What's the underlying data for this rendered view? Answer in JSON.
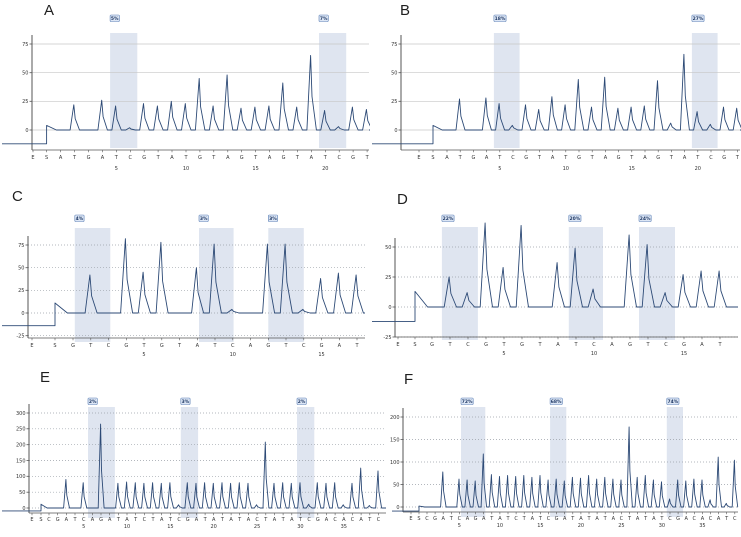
{
  "figure": {
    "background": "#ffffff"
  },
  "colors": {
    "trace": "#2d4a76",
    "band": "#dfe5f0",
    "label_box_bg": "#dce6f5",
    "label_box_border": "#5b7fb5",
    "label_text": "#1f3864",
    "grid_solid": "#c6c6c6",
    "grid_dotted": "#9aa0a8",
    "axis": "#555555",
    "text": "#333333"
  },
  "chart_data": [
    {
      "id": "A",
      "title": "A",
      "type": "line",
      "y_axis": {
        "ticks": [
          75,
          50,
          25,
          0
        ]
      },
      "x_axis": {
        "letters": [
          "E",
          "S",
          "A",
          "T",
          "G",
          "A",
          "T",
          "C",
          "G",
          "T",
          "A",
          "T",
          "G",
          "T",
          "A",
          "G",
          "T",
          "A",
          "G",
          "T",
          "A",
          "T",
          "C",
          "G",
          "T"
        ],
        "numbers": [
          5,
          10,
          15,
          20
        ]
      },
      "peak_heights": [
        0,
        22,
        0,
        26,
        21,
        2,
        23,
        21,
        25,
        23,
        45,
        21,
        48,
        19,
        20,
        21,
        41,
        20,
        65,
        17,
        3,
        20,
        18
      ],
      "pre_level": -12,
      "s_bump": 4,
      "grid": "solid",
      "regions": [
        {
          "from": 4.55,
          "to": 6.5,
          "label": "5%"
        },
        {
          "from": 19.55,
          "to": 21.5,
          "label": "7%"
        }
      ]
    },
    {
      "id": "B",
      "title": "B",
      "type": "line",
      "y_axis": {
        "ticks": [
          75,
          50,
          25,
          0
        ]
      },
      "x_axis": {
        "letters": [
          "E",
          "S",
          "A",
          "T",
          "G",
          "A",
          "T",
          "C",
          "G",
          "T",
          "A",
          "T",
          "G",
          "T",
          "A",
          "G",
          "T",
          "A",
          "G",
          "T",
          "A",
          "T",
          "C",
          "G",
          "T"
        ],
        "numbers": [
          5,
          10,
          15,
          20
        ]
      },
      "peak_heights": [
        0,
        27,
        0,
        28,
        23,
        4,
        22,
        18,
        29,
        22,
        44,
        20,
        46,
        19,
        20,
        21,
        43,
        6,
        66,
        16,
        5,
        20,
        19
      ],
      "pre_level": -12,
      "s_bump": 4,
      "grid": "solid",
      "regions": [
        {
          "from": 4.55,
          "to": 6.5,
          "label": "18%"
        },
        {
          "from": 19.55,
          "to": 21.5,
          "label": "27%"
        }
      ]
    },
    {
      "id": "C",
      "title": "C",
      "type": "line",
      "y_axis": {
        "ticks": [
          75,
          50,
          25,
          0,
          -25
        ]
      },
      "x_axis": {
        "letters": [
          "E",
          "S",
          "G",
          "T",
          "C",
          "G",
          "T",
          "G",
          "T",
          "A",
          "T",
          "C",
          "A",
          "G",
          "T",
          "C",
          "G",
          "A",
          "T"
        ],
        "numbers": [
          5,
          10,
          15
        ]
      },
      "peak_heights": [
        0,
        42,
        0,
        82,
        45,
        78,
        0,
        50,
        76,
        4,
        0,
        76,
        76,
        4,
        38,
        44,
        42
      ],
      "pre_level": -14,
      "s_bump": 11,
      "grid": "dotted",
      "regions": [
        {
          "from": 1.1,
          "to": 3.1,
          "label": "4%"
        },
        {
          "from": 8.1,
          "to": 10.05,
          "label": "3%"
        },
        {
          "from": 12.0,
          "to": 14.0,
          "label": "3%"
        }
      ]
    },
    {
      "id": "D",
      "title": "D",
      "type": "line",
      "y_axis": {
        "ticks": [
          50,
          25,
          0,
          -25
        ]
      },
      "x_axis": {
        "letters": [
          "E",
          "S",
          "G",
          "T",
          "C",
          "G",
          "T",
          "G",
          "T",
          "A",
          "T",
          "C",
          "A",
          "G",
          "T",
          "C",
          "G",
          "A",
          "T"
        ],
        "numbers": [
          5,
          10,
          15
        ]
      },
      "peak_heights": [
        0,
        25,
        12,
        70,
        33,
        68,
        0,
        37,
        49,
        15,
        0,
        60,
        52,
        12,
        27,
        30,
        30
      ],
      "pre_level": -12,
      "s_bump": 13,
      "grid": "dotted",
      "regions": [
        {
          "from": 1.55,
          "to": 3.55,
          "label": "22%"
        },
        {
          "from": 8.6,
          "to": 10.5,
          "label": "20%"
        },
        {
          "from": 12.5,
          "to": 14.5,
          "label": "24%"
        }
      ]
    },
    {
      "id": "E",
      "title": "E",
      "type": "line",
      "y_axis": {
        "ticks": [
          300,
          250,
          200,
          150,
          100,
          50,
          0
        ]
      },
      "x_axis": {
        "letters": [
          "E",
          "S",
          "C",
          "G",
          "A",
          "T",
          "C",
          "A",
          "G",
          "A",
          "T",
          "A",
          "T",
          "C",
          "T",
          "A",
          "T",
          "C",
          "G",
          "A",
          "T",
          "A",
          "T",
          "A",
          "T",
          "A",
          "C",
          "T",
          "A",
          "T",
          "A",
          "T",
          "C",
          "G",
          "A",
          "C",
          "A",
          "C",
          "A",
          "T",
          "C"
        ],
        "numbers": [
          5,
          10,
          15,
          20,
          25,
          30,
          35
        ]
      },
      "peak_heights": [
        0,
        0,
        90,
        0,
        80,
        0,
        265,
        0,
        78,
        82,
        80,
        78,
        80,
        78,
        80,
        10,
        80,
        78,
        80,
        78,
        80,
        78,
        80,
        78,
        10,
        208,
        78,
        80,
        78,
        80,
        12,
        80,
        78,
        80,
        10,
        78,
        126,
        8,
        117
      ],
      "pre_level": -9,
      "s_bump": 12,
      "grid": "dotted",
      "regions": [
        {
          "from": 5.5,
          "to": 8.6,
          "label": "2%"
        },
        {
          "from": 16.2,
          "to": 18.2,
          "label": "3%"
        },
        {
          "from": 29.6,
          "to": 31.6,
          "label": "2%"
        }
      ]
    },
    {
      "id": "F",
      "title": "F",
      "type": "line",
      "y_axis": {
        "ticks": [
          200,
          150,
          100,
          50,
          0
        ]
      },
      "x_axis": {
        "letters": [
          "E",
          "S",
          "C",
          "G",
          "A",
          "T",
          "C",
          "A",
          "G",
          "A",
          "T",
          "A",
          "T",
          "C",
          "T",
          "A",
          "T",
          "C",
          "G",
          "A",
          "T",
          "A",
          "T",
          "A",
          "T",
          "A",
          "C",
          "T",
          "A",
          "T",
          "A",
          "T",
          "C",
          "G",
          "A",
          "C",
          "A",
          "C",
          "A",
          "T",
          "C"
        ],
        "numbers": [
          5,
          10,
          15,
          20,
          25,
          30,
          35
        ]
      },
      "peak_heights": [
        0,
        0,
        78,
        0,
        62,
        60,
        58,
        118,
        72,
        68,
        70,
        68,
        70,
        66,
        70,
        60,
        62,
        58,
        66,
        64,
        70,
        62,
        66,
        62,
        60,
        178,
        66,
        70,
        60,
        56,
        18,
        60,
        58,
        62,
        60,
        16,
        111,
        8,
        104
      ],
      "pre_level": -9,
      "s_bump": 2,
      "grid": "dotted",
      "regions": [
        {
          "from": 5.2,
          "to": 8.2,
          "label": "72%"
        },
        {
          "from": 16.2,
          "to": 18.2,
          "label": "68%"
        },
        {
          "from": 30.6,
          "to": 32.6,
          "label": "74%"
        }
      ]
    }
  ]
}
